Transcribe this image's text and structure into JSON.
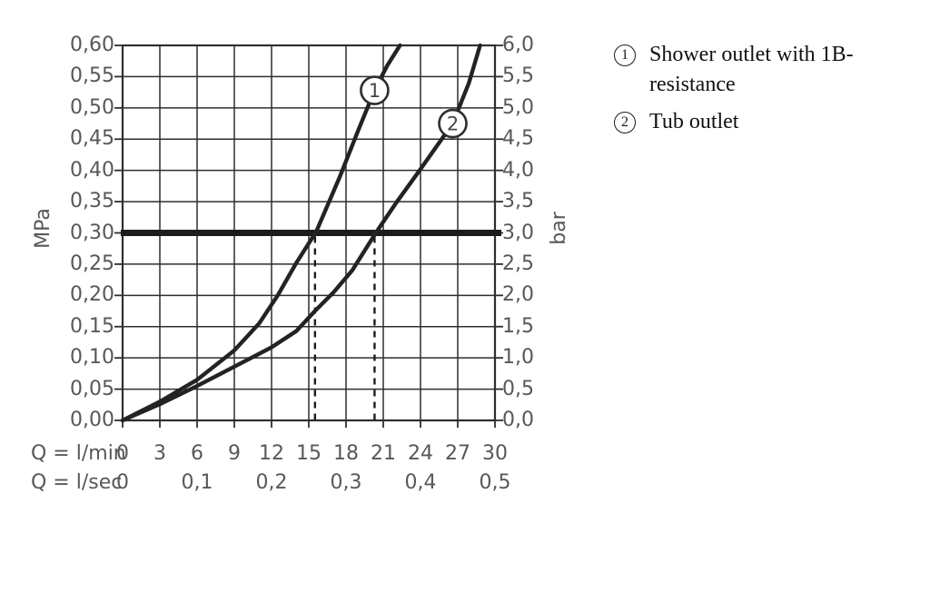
{
  "chart_data": {
    "type": "line",
    "title": "",
    "x_axis": {
      "prefix_lmin": "Q = l/min",
      "prefix_lsec": "Q = l/sec",
      "range_lmin": [
        0,
        30
      ],
      "ticks_lmin": [
        {
          "label": "0",
          "q": 0
        },
        {
          "label": "3",
          "q": 3
        },
        {
          "label": "6",
          "q": 6
        },
        {
          "label": "9",
          "q": 9
        },
        {
          "label": "12",
          "q": 12
        },
        {
          "label": "15",
          "q": 15
        },
        {
          "label": "18",
          "q": 18
        },
        {
          "label": "21",
          "q": 21
        },
        {
          "label": "24",
          "q": 24
        },
        {
          "label": "27",
          "q": 27
        },
        {
          "label": "30",
          "q": 30
        }
      ],
      "ticks_lsec": [
        {
          "label": "0",
          "q": 0
        },
        {
          "label": "0,1",
          "q": 6
        },
        {
          "label": "0,2",
          "q": 12
        },
        {
          "label": "0,3",
          "q": 18
        },
        {
          "label": "0,4",
          "q": 24
        },
        {
          "label": "0,5",
          "q": 30
        }
      ]
    },
    "y_axis_left": {
      "label": "MPa",
      "range": [
        0,
        0.6
      ],
      "ticks": [
        {
          "label": "0,00",
          "mpa": 0.0
        },
        {
          "label": "0,05",
          "mpa": 0.05
        },
        {
          "label": "0,10",
          "mpa": 0.1
        },
        {
          "label": "0,15",
          "mpa": 0.15
        },
        {
          "label": "0,20",
          "mpa": 0.2
        },
        {
          "label": "0,25",
          "mpa": 0.25
        },
        {
          "label": "0,30",
          "mpa": 0.3
        },
        {
          "label": "0,35",
          "mpa": 0.35
        },
        {
          "label": "0,40",
          "mpa": 0.4
        },
        {
          "label": "0,45",
          "mpa": 0.45
        },
        {
          "label": "0,50",
          "mpa": 0.5
        },
        {
          "label": "0,55",
          "mpa": 0.55
        },
        {
          "label": "0,60",
          "mpa": 0.6
        }
      ]
    },
    "y_axis_right": {
      "label": "bar",
      "range": [
        0,
        6
      ],
      "ticks": [
        {
          "label": "0,0",
          "mpa": 0.0
        },
        {
          "label": "0,5",
          "mpa": 0.05
        },
        {
          "label": "1,0",
          "mpa": 0.1
        },
        {
          "label": "1,5",
          "mpa": 0.15
        },
        {
          "label": "2,0",
          "mpa": 0.2
        },
        {
          "label": "2,5",
          "mpa": 0.25
        },
        {
          "label": "3,0",
          "mpa": 0.3
        },
        {
          "label": "3,5",
          "mpa": 0.35
        },
        {
          "label": "4,0",
          "mpa": 0.4
        },
        {
          "label": "4,5",
          "mpa": 0.45
        },
        {
          "label": "5,0",
          "mpa": 0.5
        },
        {
          "label": "5,5",
          "mpa": 0.55
        },
        {
          "label": "6,0",
          "mpa": 0.6
        }
      ]
    },
    "grid": {
      "x_step_lmin": 3,
      "y_step_mpa": 0.05,
      "grid_on": true
    },
    "reference_line": {
      "mpa": 0.3,
      "bar": 3.0
    },
    "dashed_guides_lmin": [
      15.5,
      20.3
    ],
    "series": [
      {
        "symbol": "1",
        "name": "Shower outlet with 1B-resistance",
        "crosses_3bar_at_lmin": 15.5,
        "marker": {
          "q": 20.3,
          "mpa": 0.528
        },
        "points": [
          [
            0,
            0
          ],
          [
            3,
            0.03
          ],
          [
            6,
            0.065
          ],
          [
            9,
            0.112
          ],
          [
            11,
            0.155
          ],
          [
            12.5,
            0.2
          ],
          [
            14,
            0.252
          ],
          [
            15.6,
            0.302
          ],
          [
            17.5,
            0.39
          ],
          [
            19,
            0.465
          ],
          [
            20.3,
            0.528
          ],
          [
            21.3,
            0.567
          ],
          [
            22.35,
            0.6
          ]
        ]
      },
      {
        "symbol": "2",
        "name": "Tub outlet",
        "crosses_3bar_at_lmin": 20.3,
        "marker": {
          "q": 26.6,
          "mpa": 0.475
        },
        "points": [
          [
            0,
            0
          ],
          [
            3,
            0.026
          ],
          [
            6,
            0.055
          ],
          [
            9,
            0.086
          ],
          [
            12,
            0.117
          ],
          [
            14,
            0.143
          ],
          [
            15.5,
            0.175
          ],
          [
            17,
            0.205
          ],
          [
            18.5,
            0.24
          ],
          [
            20.4,
            0.3
          ],
          [
            22,
            0.347
          ],
          [
            24,
            0.402
          ],
          [
            26.6,
            0.475
          ],
          [
            27.9,
            0.54
          ],
          [
            28.8,
            0.6
          ]
        ]
      }
    ],
    "colors": {
      "grid": "#2e2e2e",
      "curve": "#232323",
      "reference_line": "#1c1c1c",
      "axis_text": "#585858",
      "legend_text": "#111111",
      "background": "#ffffff"
    }
  },
  "legend": {
    "items": [
      {
        "symbol": "1",
        "label": "Shower outlet with 1B-resistance"
      },
      {
        "symbol": "2",
        "label": "Tub outlet"
      }
    ]
  }
}
